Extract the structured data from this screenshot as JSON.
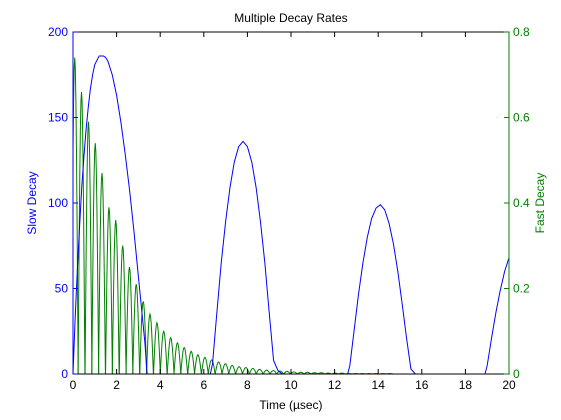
{
  "chart_data": {
    "type": "line",
    "title": "Multiple Decay Rates",
    "xlabel": "Time (µsec)",
    "xlim": [
      0,
      20
    ],
    "xticks": [
      "0",
      "2",
      "4",
      "6",
      "8",
      "10",
      "12",
      "14",
      "16",
      "18",
      "20"
    ],
    "grid": false,
    "legend": "none",
    "axes": {
      "left": {
        "label": "Slow Decay",
        "ylim": [
          0,
          200
        ],
        "ticks": [
          "0",
          "50",
          "100",
          "150",
          "200"
        ],
        "color": "#0000ff"
      },
      "right": {
        "label": "Fast Decay",
        "ylim": [
          0,
          0.8
        ],
        "ticks": [
          "0",
          "0.2",
          "0.4",
          "0.6",
          "0.8"
        ],
        "color": "#008000"
      }
    },
    "series": [
      {
        "axis": "left",
        "color": "#0000ff",
        "x": [
          0,
          0.1,
          0.2,
          0.3,
          0.4,
          0.5,
          0.6,
          0.7,
          0.8,
          0.9,
          1.0,
          1.2,
          1.4,
          1.5,
          1.6,
          1.8,
          2.0,
          2.2,
          2.4,
          2.6,
          2.8,
          3.0,
          3.2,
          3.3,
          3.4,
          4.0,
          5.0,
          6.0,
          6.3,
          6.4,
          6.6,
          6.8,
          7.0,
          7.2,
          7.4,
          7.6,
          7.8,
          8.0,
          8.2,
          8.4,
          8.6,
          8.8,
          9.0,
          9.2,
          9.4,
          9.6,
          10,
          11,
          12,
          12.6,
          12.7,
          12.9,
          13.1,
          13.3,
          13.5,
          13.7,
          13.9,
          14.1,
          14.3,
          14.5,
          14.7,
          14.9,
          15.1,
          15.3,
          15.5,
          15.7,
          15.9,
          17,
          18,
          18.9,
          19.0,
          19.2,
          19.4,
          19.6,
          19.8,
          20.0
        ],
        "y": [
          0,
          33,
          61,
          86,
          109,
          127,
          143,
          156,
          167,
          175,
          181,
          186,
          186,
          185,
          183,
          175,
          163,
          147,
          128,
          107,
          83,
          57,
          31,
          18,
          0,
          0,
          0,
          0,
          0,
          6,
          36,
          65,
          89,
          109,
          124,
          133,
          136,
          133,
          124,
          109,
          89,
          65,
          36,
          8,
          2,
          0,
          0,
          0,
          0,
          0,
          5,
          26,
          47,
          65,
          80,
          91,
          97,
          99,
          96,
          88,
          76,
          60,
          41,
          21,
          3,
          0,
          0,
          0,
          0,
          0,
          5,
          21,
          36,
          49,
          60,
          68
        ]
      },
      {
        "axis": "right",
        "color": "#008000",
        "period": 0.314,
        "x": [
          0.08,
          0.39,
          0.71,
          1.02,
          1.33,
          1.65,
          1.96,
          2.28,
          2.59,
          2.9,
          3.22,
          3.53,
          3.85,
          4.16,
          4.48,
          4.79,
          5.1,
          5.42,
          5.73,
          6.05,
          6.36,
          6.68,
          6.99,
          7.3,
          7.62,
          7.93,
          8.25,
          8.56,
          8.88,
          9.19,
          9.5,
          9.82,
          10.13,
          10.45,
          10.76,
          11.08,
          11.39,
          11.7,
          12.02,
          12.33,
          12.65,
          12.96,
          13.27,
          13.59,
          13.9,
          14.22,
          14.53,
          14.85,
          15.16,
          15.47,
          15.79,
          16.1,
          16.42,
          16.73,
          17.05,
          17.36,
          17.67,
          17.99,
          18.3,
          18.62,
          18.93,
          19.25,
          19.56,
          19.88
        ],
        "y": [
          0.74,
          0.66,
          0.59,
          0.54,
          0.47,
          0.39,
          0.36,
          0.3,
          0.25,
          0.21,
          0.17,
          0.14,
          0.12,
          0.1,
          0.085,
          0.073,
          0.062,
          0.053,
          0.045,
          0.039,
          0.033,
          0.028,
          0.024,
          0.02,
          0.017,
          0.015,
          0.013,
          0.011,
          0.009,
          0.008,
          0.007,
          0.006,
          0.005,
          0.004,
          0.004,
          0.003,
          0.003,
          0.002,
          0.002,
          0.002,
          0.001,
          0.001,
          0.001,
          0.001,
          0.001,
          0.001,
          0.001,
          0,
          0,
          0,
          0,
          0,
          0,
          0,
          0,
          0,
          0,
          0,
          0,
          0,
          0,
          0,
          0,
          0
        ]
      }
    ]
  }
}
